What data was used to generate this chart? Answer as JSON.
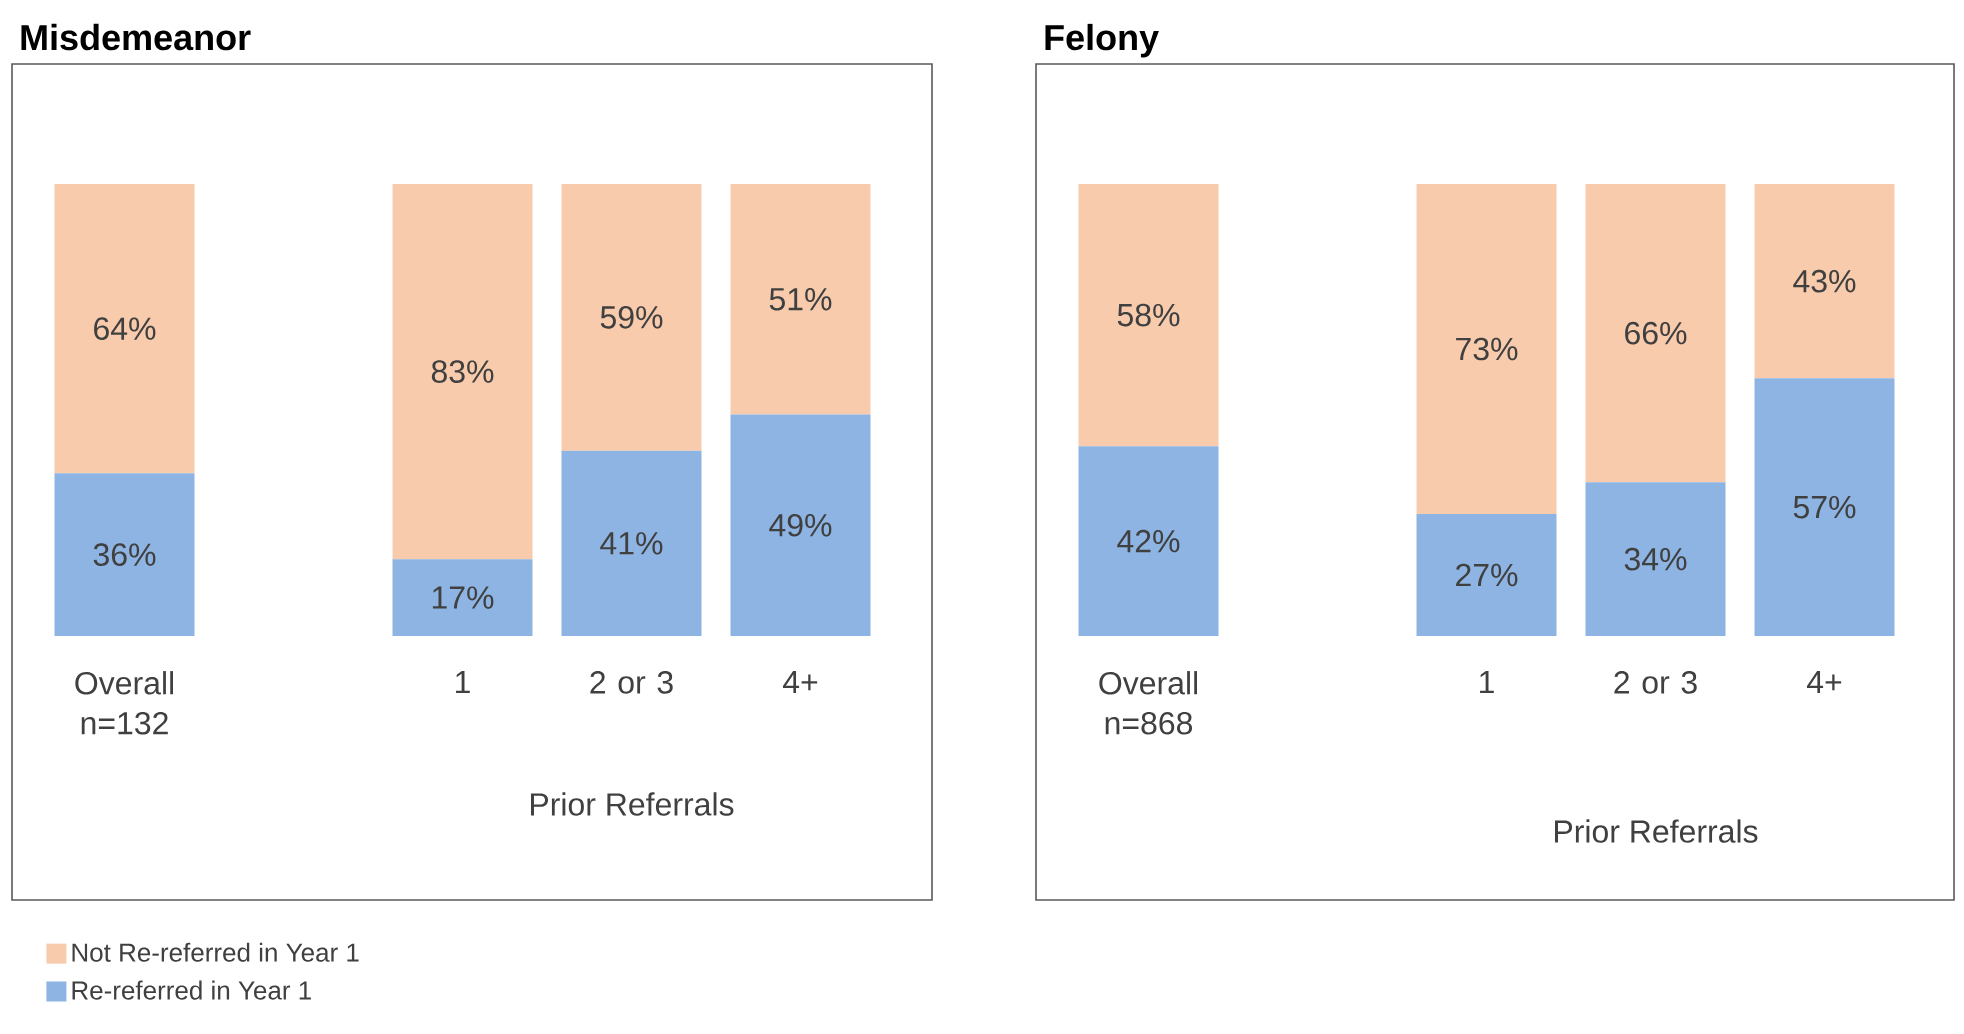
{
  "chart_data": [
    {
      "type": "bar",
      "stacked": true,
      "title": "Misdemeanor",
      "xlabel": "Prior Referrals",
      "categories": [
        "Overall n=132",
        null,
        "1",
        "2 or 3",
        "4+"
      ],
      "tick_labels": "x",
      "legend": "bottom left",
      "series": [
        {
          "name": "Re-referred in Year 1",
          "color": "#8eb4e3",
          "values": [
            36,
            null,
            17,
            41,
            49
          ],
          "value_labels": [
            "36%",
            null,
            "17%",
            "41%",
            "49%"
          ]
        },
        {
          "name": "Not Re-referred in Year 1",
          "color": "#f8cbad",
          "values": [
            64,
            null,
            83,
            59,
            51
          ],
          "value_labels": [
            "64%",
            null,
            "83%",
            "59%",
            "51%"
          ]
        }
      ]
    },
    {
      "type": "bar",
      "stacked": true,
      "title": "Felony",
      "xlabel": "Prior Referrals",
      "categories": [
        "Overall n=868",
        null,
        "1",
        "2 or 3",
        "4+"
      ],
      "tick_labels": "x",
      "series": [
        {
          "color": "#8eb4e3",
          "values": [
            42,
            null,
            27,
            34,
            57
          ],
          "value_labels": [
            "42%",
            null,
            "27%",
            "34%",
            "57%"
          ]
        },
        {
          "color": "#f8cbad",
          "values": [
            58,
            null,
            73,
            66,
            43
          ],
          "value_labels": [
            "58%",
            null,
            "73%",
            "66%",
            "43%"
          ]
        }
      ]
    }
  ]
}
